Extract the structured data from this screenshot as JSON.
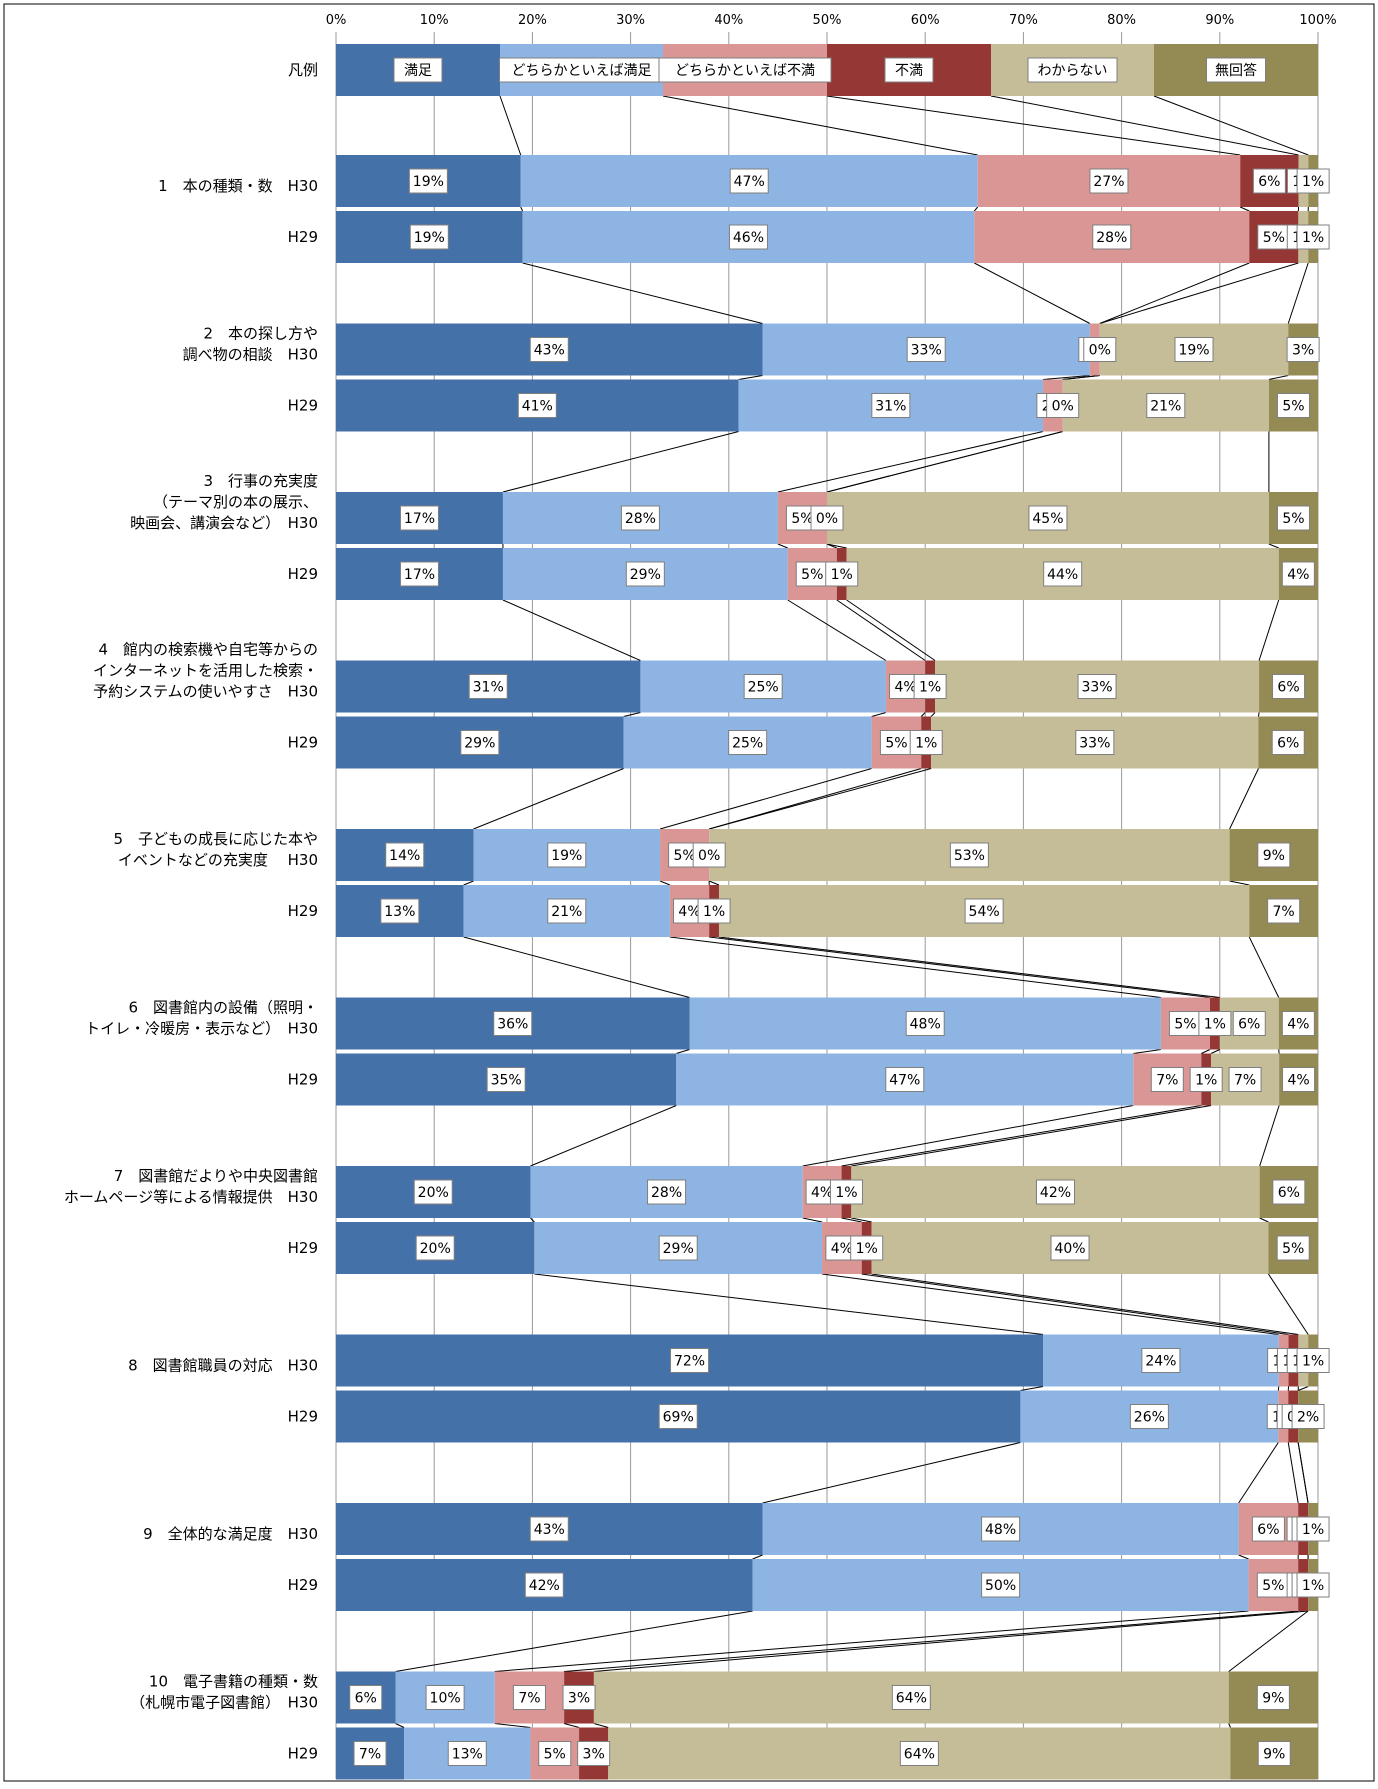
{
  "chart_data": {
    "type": "bar",
    "stacked": true,
    "orientation": "horizontal",
    "xlim": [
      0,
      100
    ],
    "x_ticks": [
      "0%",
      "10%",
      "20%",
      "30%",
      "40%",
      "50%",
      "60%",
      "70%",
      "80%",
      "90%",
      "100%"
    ],
    "grid": true,
    "legend_row_label": "凡例",
    "series": [
      {
        "name": "満足",
        "color": "#4472A8"
      },
      {
        "name": "どちらかといえば満足",
        "color": "#8EB4E3"
      },
      {
        "name": "どちらかといえば不満",
        "color": "#DA9694"
      },
      {
        "name": "不満",
        "color": "#953735"
      },
      {
        "name": "わからない",
        "color": "#C4BD97"
      },
      {
        "name": "無回答",
        "color": "#948A54"
      }
    ],
    "groups": [
      {
        "label_lines": [
          "1　本の種類・数　H30"
        ],
        "year2_label": "H29",
        "rows": [
          [
            19,
            47,
            27,
            6,
            1,
            1
          ],
          [
            19,
            46,
            28,
            5,
            1,
            1
          ]
        ]
      },
      {
        "label_lines": [
          "2　本の探し方や",
          "調べ物の相談　H30"
        ],
        "year2_label": "H29",
        "rows": [
          [
            43,
            33,
            1,
            0,
            19,
            3
          ],
          [
            41,
            31,
            2,
            0,
            21,
            5
          ]
        ]
      },
      {
        "label_lines": [
          "3　行事の充実度",
          "（テーマ別の本の展示、",
          "映画会、講演会など）　H30"
        ],
        "year2_label": "H29",
        "rows": [
          [
            17,
            28,
            5,
            0,
            45,
            5
          ],
          [
            17,
            29,
            5,
            1,
            44,
            4
          ]
        ]
      },
      {
        "label_lines": [
          "4　館内の検索機や自宅等からの",
          "インターネットを活用した検索・",
          "予約システムの使いやすさ　H30"
        ],
        "year2_label": "H29",
        "rows": [
          [
            31,
            25,
            4,
            1,
            33,
            6
          ],
          [
            29,
            25,
            5,
            1,
            33,
            6
          ]
        ]
      },
      {
        "label_lines": [
          "5　子どもの成長に応じた本や",
          "イベントなどの充実度　 H30"
        ],
        "year2_label": "H29",
        "rows": [
          [
            14,
            19,
            5,
            0,
            53,
            9
          ],
          [
            13,
            21,
            4,
            1,
            54,
            7
          ]
        ]
      },
      {
        "label_lines": [
          "6　図書館内の設備（照明・",
          "トイレ・冷暖房・表示など）　H30"
        ],
        "year2_label": "H29",
        "rows": [
          [
            36,
            48,
            5,
            1,
            6,
            4
          ],
          [
            35,
            47,
            7,
            1,
            7,
            4
          ]
        ]
      },
      {
        "label_lines": [
          "7　図書館だよりや中央図書館",
          "ホームページ等による情報提供　H30"
        ],
        "year2_label": "H29",
        "rows": [
          [
            20,
            28,
            4,
            1,
            42,
            6
          ],
          [
            20,
            29,
            4,
            1,
            40,
            5
          ]
        ]
      },
      {
        "label_lines": [
          "8　図書館職員の対応　H30"
        ],
        "year2_label": "H29",
        "rows": [
          [
            72,
            24,
            1,
            1,
            1,
            1
          ],
          [
            69,
            26,
            1,
            1,
            0,
            2
          ]
        ]
      },
      {
        "label_lines": [
          "9　全体的な満足度　H30"
        ],
        "year2_label": "H29",
        "rows": [
          [
            43,
            48,
            6,
            1,
            0,
            1
          ],
          [
            42,
            50,
            5,
            1,
            0,
            1
          ]
        ]
      },
      {
        "label_lines": [
          "10　電子書籍の種類・数",
          "（札幌市電子図書館）　H30"
        ],
        "year2_label": "H29",
        "rows": [
          [
            6,
            10,
            7,
            3,
            64,
            9
          ],
          [
            7,
            13,
            5,
            3,
            64,
            9
          ]
        ]
      }
    ]
  }
}
